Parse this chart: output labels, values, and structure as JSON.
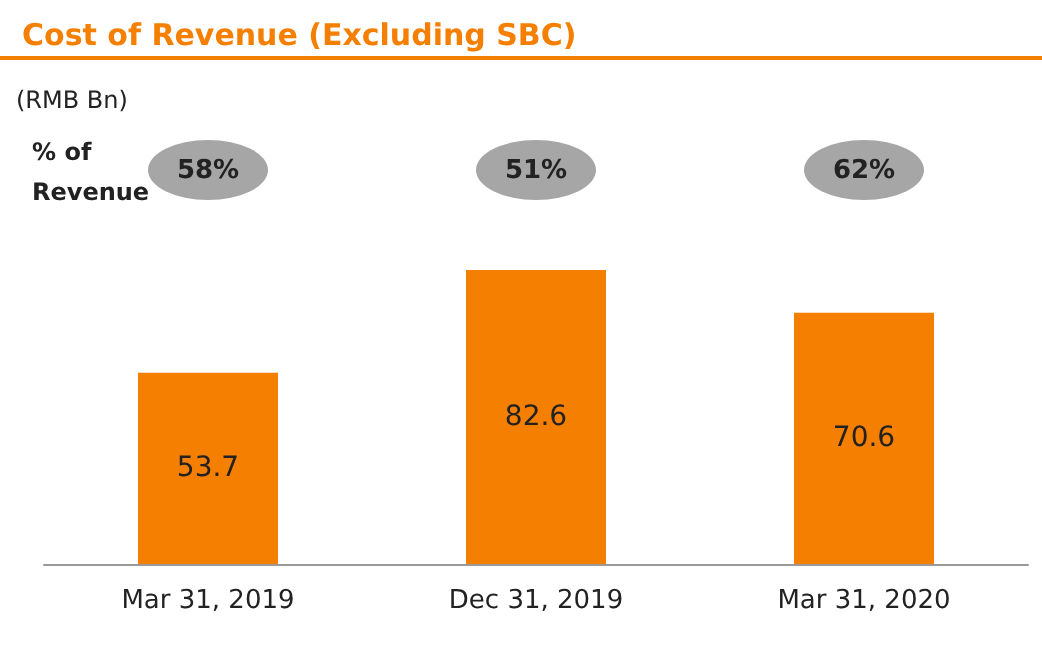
{
  "chart_data": {
    "type": "bar",
    "title": "Cost of Revenue (Excluding SBC)",
    "categories": [
      "Mar 31, 2019",
      "Dec 31, 2019",
      "Mar 31, 2020"
    ],
    "values": [
      53.7,
      82.6,
      70.6
    ],
    "color": "#f57f00",
    "data_labels": true,
    "annotations": [
      "(RMB Bn)",
      "% of\nRevenue",
      "58%",
      "51%",
      "62%"
    ]
  }
}
